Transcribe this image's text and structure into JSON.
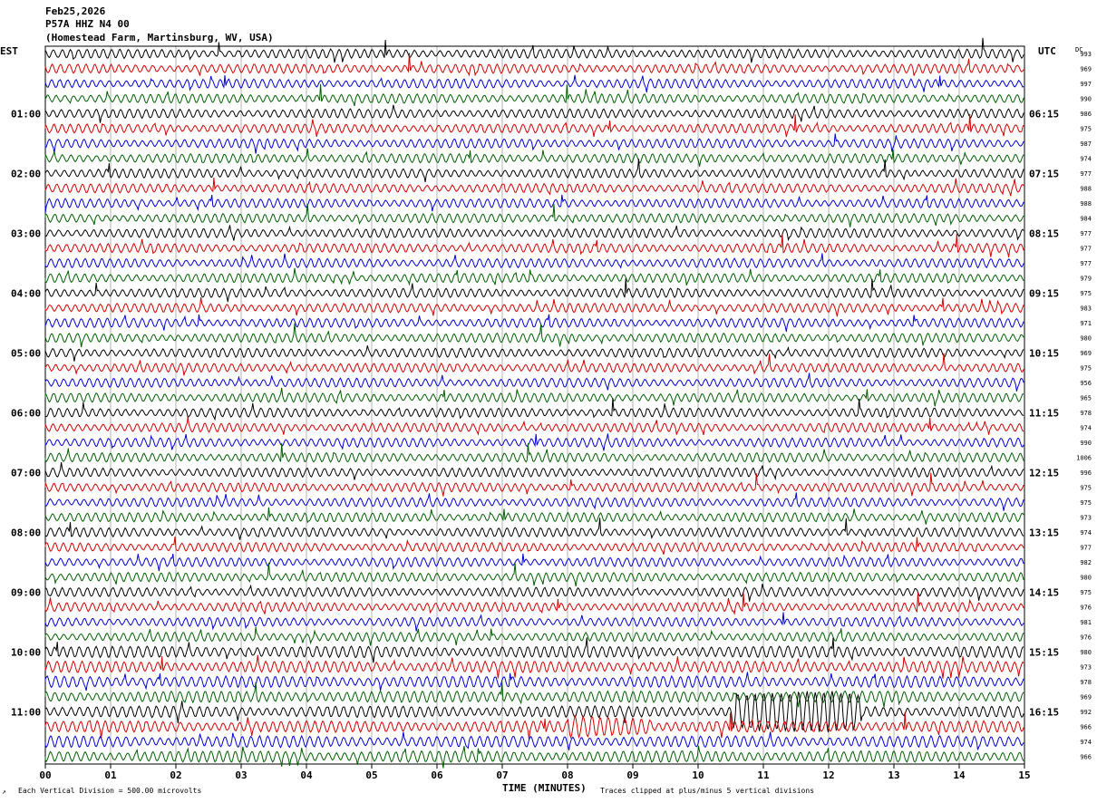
{
  "header": {
    "date": "Feb25,2026",
    "station": "P57A HHZ N4 00",
    "location": "(Homestead Farm, Martinsburg, WV, USA)"
  },
  "left_axis_label": "EST",
  "right_axis_label": "UTC",
  "dc_label": "DC",
  "footer": {
    "scale": "Each Vertical Division =  500.00 microvolts",
    "clip": "Traces clipped at plus/minus 5 vertical divisions",
    "corner_mark": "↗"
  },
  "colors": {
    "black": "#000000",
    "red": "#d40000",
    "blue": "#0000d8",
    "green": "#006000",
    "grid": "#808080"
  },
  "chart_data": {
    "type": "line",
    "xlabel": "TIME (MINUTES)",
    "xlim": [
      0,
      15
    ],
    "x_ticks": [
      "00",
      "01",
      "02",
      "03",
      "04",
      "05",
      "06",
      "07",
      "08",
      "09",
      "10",
      "11",
      "12",
      "13",
      "14",
      "15"
    ],
    "trace_count": 48,
    "trace_minutes": 15,
    "color_cycle": [
      "black",
      "red",
      "blue",
      "green"
    ],
    "est_hour_labels": [
      "01:00",
      "02:00",
      "03:00",
      "04:00",
      "05:00",
      "06:00",
      "07:00",
      "08:00",
      "09:00",
      "10:00",
      "11:00"
    ],
    "utc_hour_labels": [
      "06:15",
      "07:15",
      "08:15",
      "09:15",
      "10:15",
      "11:15",
      "12:15",
      "13:15",
      "14:15",
      "15:15",
      "16:15"
    ],
    "dc_values": [
      "993",
      "969",
      "997",
      "990",
      "986",
      "975",
      "987",
      "974",
      "977",
      "988",
      "988",
      "984",
      "977",
      "977",
      "977",
      "979",
      "975",
      "983",
      "971",
      "980",
      "969",
      "975",
      "956",
      "965",
      "978",
      "974",
      "990",
      "1006",
      "996",
      "975",
      "975",
      "973",
      "974",
      "977",
      "982",
      "980",
      "975",
      "976",
      "981",
      "976",
      "980",
      "973",
      "978",
      "969",
      "992",
      "966",
      "974",
      "966"
    ]
  }
}
